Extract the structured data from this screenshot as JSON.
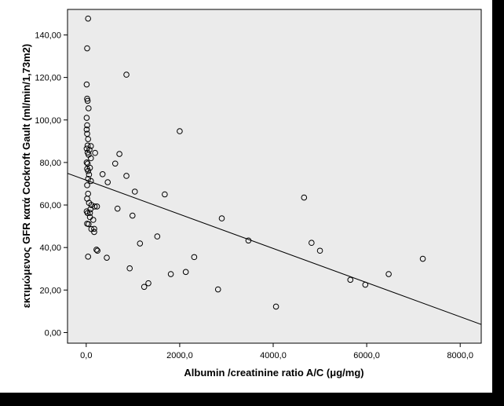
{
  "chart_data": {
    "type": "scatter",
    "title": "",
    "xlabel": "Albumin /creatinine ratio A/C (μg/mg)",
    "ylabel": "εκτιμώμενος GFR κατά Cockroft Gault (ml/min/1,73m2)",
    "xlim": [
      -400,
      8450
    ],
    "ylim": [
      -5,
      152
    ],
    "x_ticks": [
      "0,0",
      "2000,0",
      "4000,0",
      "6000,0",
      "8000,0"
    ],
    "x_tick_values": [
      0,
      2000,
      4000,
      6000,
      8000
    ],
    "y_ticks": [
      "0,00",
      "20,00",
      "40,00",
      "60,00",
      "80,00",
      "100,00",
      "120,00",
      "140,00"
    ],
    "y_tick_values": [
      0,
      20,
      40,
      60,
      80,
      100,
      120,
      140
    ],
    "grid": false,
    "plot_background": "#ebebeb",
    "marker_color": "#000000",
    "fit_line": {
      "x": [
        -400,
        8450
      ],
      "y": [
        74.9,
        3.8
      ]
    },
    "points": [
      {
        "x": 40,
        "y": 147.7
      },
      {
        "x": 20,
        "y": 133.7
      },
      {
        "x": 10,
        "y": 116.7
      },
      {
        "x": 20,
        "y": 110
      },
      {
        "x": 30,
        "y": 109
      },
      {
        "x": 50,
        "y": 105.5
      },
      {
        "x": 10,
        "y": 101
      },
      {
        "x": 20,
        "y": 97.5
      },
      {
        "x": 10,
        "y": 95.5
      },
      {
        "x": 20,
        "y": 93.5
      },
      {
        "x": 40,
        "y": 91
      },
      {
        "x": 30,
        "y": 88
      },
      {
        "x": 100,
        "y": 87.7
      },
      {
        "x": 10,
        "y": 86.5
      },
      {
        "x": 70,
        "y": 86
      },
      {
        "x": 30,
        "y": 84.7
      },
      {
        "x": 190,
        "y": 84.5
      },
      {
        "x": 50,
        "y": 83.7
      },
      {
        "x": 100,
        "y": 82
      },
      {
        "x": 10,
        "y": 80
      },
      {
        "x": 30,
        "y": 79.5
      },
      {
        "x": 80,
        "y": 77.5
      },
      {
        "x": 20,
        "y": 77
      },
      {
        "x": 40,
        "y": 76
      },
      {
        "x": 60,
        "y": 74.3
      },
      {
        "x": 40,
        "y": 72.3
      },
      {
        "x": 100,
        "y": 71.3
      },
      {
        "x": 20,
        "y": 69.3
      },
      {
        "x": 40,
        "y": 65.3
      },
      {
        "x": 20,
        "y": 63
      },
      {
        "x": 60,
        "y": 61
      },
      {
        "x": 110,
        "y": 60
      },
      {
        "x": 180,
        "y": 59.3
      },
      {
        "x": 230,
        "y": 59.3
      },
      {
        "x": 90,
        "y": 58
      },
      {
        "x": 10,
        "y": 57
      },
      {
        "x": 80,
        "y": 56.3
      },
      {
        "x": 30,
        "y": 56.2
      },
      {
        "x": 80,
        "y": 54.3
      },
      {
        "x": 150,
        "y": 53
      },
      {
        "x": 20,
        "y": 51.2
      },
      {
        "x": 50,
        "y": 51
      },
      {
        "x": 170,
        "y": 48.8
      },
      {
        "x": 110,
        "y": 48.7
      },
      {
        "x": 170,
        "y": 47.3
      },
      {
        "x": 220,
        "y": 39
      },
      {
        "x": 240,
        "y": 38.5
      },
      {
        "x": 40,
        "y": 35.7
      },
      {
        "x": 440,
        "y": 35.2
      },
      {
        "x": 860,
        "y": 121.3
      },
      {
        "x": 2000,
        "y": 94.7
      },
      {
        "x": 710,
        "y": 84
      },
      {
        "x": 620,
        "y": 79.5
      },
      {
        "x": 350,
        "y": 74.5
      },
      {
        "x": 860,
        "y": 73.7
      },
      {
        "x": 460,
        "y": 70.7
      },
      {
        "x": 1040,
        "y": 66.3
      },
      {
        "x": 1680,
        "y": 65
      },
      {
        "x": 670,
        "y": 58.3
      },
      {
        "x": 990,
        "y": 55
      },
      {
        "x": 4660,
        "y": 63.5
      },
      {
        "x": 2900,
        "y": 53.7
      },
      {
        "x": 1520,
        "y": 45.2
      },
      {
        "x": 3470,
        "y": 43.3
      },
      {
        "x": 4820,
        "y": 42.2
      },
      {
        "x": 1150,
        "y": 41.9
      },
      {
        "x": 5000,
        "y": 38.5
      },
      {
        "x": 2310,
        "y": 35.5
      },
      {
        "x": 7200,
        "y": 34.7
      },
      {
        "x": 930,
        "y": 30.2
      },
      {
        "x": 2130,
        "y": 28.5
      },
      {
        "x": 1810,
        "y": 27.5
      },
      {
        "x": 6470,
        "y": 27.5
      },
      {
        "x": 5650,
        "y": 24.8
      },
      {
        "x": 1330,
        "y": 23.2
      },
      {
        "x": 5970,
        "y": 22.5
      },
      {
        "x": 1240,
        "y": 21.5
      },
      {
        "x": 2820,
        "y": 20.3
      },
      {
        "x": 4060,
        "y": 12.2
      }
    ]
  }
}
